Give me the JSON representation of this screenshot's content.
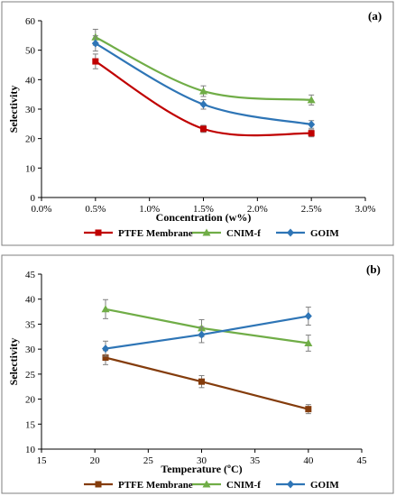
{
  "chart_data": [
    {
      "type": "line",
      "panel_label": "(a)",
      "xlabel": "Concentration (w%)",
      "ylabel": "Selectivity",
      "xlim": [
        0.0,
        3.0
      ],
      "ylim": [
        0,
        60
      ],
      "x_ticks": [
        "0.0%",
        "0.5%",
        "1.0%",
        "1.5%",
        "2.0%",
        "2.5%",
        "3.0%"
      ],
      "y_ticks": [
        "0",
        "10",
        "20",
        "30",
        "40",
        "50",
        "60"
      ],
      "x_tick_values": [
        0.0,
        0.5,
        1.0,
        1.5,
        2.0,
        2.5,
        3.0
      ],
      "y_tick_values": [
        0,
        10,
        20,
        30,
        40,
        50,
        60
      ],
      "x": [
        0.5,
        1.5,
        2.5
      ],
      "smooth": true,
      "legend_position": "bottom",
      "series": [
        {
          "name": "PTFE Membrane",
          "color": "#c00000",
          "marker": "square",
          "values": [
            46.2,
            23.3,
            21.8
          ],
          "errors": [
            2.5,
            1.2,
            1.2
          ]
        },
        {
          "name": "CNIM-f",
          "color": "#70ad47",
          "marker": "triangle",
          "values": [
            54.4,
            36.1,
            33.1
          ],
          "errors": [
            2.7,
            1.8,
            1.7
          ]
        },
        {
          "name": "GOIM",
          "color": "#2e75b6",
          "marker": "diamond",
          "values": [
            52.3,
            31.6,
            24.8
          ],
          "errors": [
            2.6,
            1.6,
            1.3
          ]
        }
      ]
    },
    {
      "type": "line",
      "panel_label": "(b)",
      "xlabel": "Temperature (ºC)",
      "ylabel": "Selectivity",
      "xlim": [
        15,
        45
      ],
      "ylim": [
        10,
        45
      ],
      "x_ticks": [
        "15",
        "20",
        "25",
        "30",
        "35",
        "40",
        "45"
      ],
      "y_ticks": [
        "10",
        "15",
        "20",
        "25",
        "30",
        "35",
        "40",
        "45"
      ],
      "x_tick_values": [
        15,
        20,
        25,
        30,
        35,
        40,
        45
      ],
      "y_tick_values": [
        10,
        15,
        20,
        25,
        30,
        35,
        40,
        45
      ],
      "x": [
        21,
        30,
        40
      ],
      "smooth": false,
      "legend_position": "bottom",
      "series": [
        {
          "name": "PTFE Membrane",
          "color": "#843c0c",
          "marker": "square",
          "values": [
            28.3,
            23.5,
            18.0
          ],
          "errors": [
            1.4,
            1.2,
            0.9
          ]
        },
        {
          "name": "CNIM-f",
          "color": "#70ad47",
          "marker": "triangle",
          "values": [
            38.0,
            34.2,
            31.2
          ],
          "errors": [
            1.9,
            1.7,
            1.6
          ]
        },
        {
          "name": "GOIM",
          "color": "#2e75b6",
          "marker": "diamond",
          "values": [
            30.1,
            32.9,
            36.6
          ],
          "errors": [
            1.5,
            1.6,
            1.8
          ]
        }
      ]
    }
  ]
}
